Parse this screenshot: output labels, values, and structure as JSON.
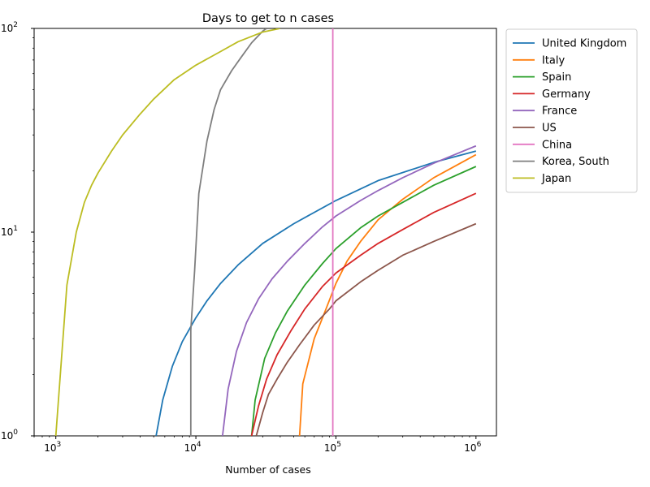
{
  "chart_data": {
    "type": "line",
    "title": "Days to get to n cases",
    "xlabel": "Number of cases",
    "ylabel": "",
    "xscale": "log",
    "yscale": "log",
    "xlim": [
      700,
      1400000
    ],
    "ylim": [
      1,
      100
    ],
    "x_ticks": [
      {
        "value": 1000,
        "base": "10",
        "exp": "3"
      },
      {
        "value": 10000,
        "base": "10",
        "exp": "4"
      },
      {
        "value": 100000,
        "base": "10",
        "exp": "5"
      },
      {
        "value": 1000000,
        "base": "10",
        "exp": "6"
      }
    ],
    "y_ticks": [
      {
        "value": 1,
        "base": "10",
        "exp": "0"
      },
      {
        "value": 10,
        "base": "10",
        "exp": "1"
      },
      {
        "value": 100,
        "base": "10",
        "exp": "2"
      }
    ],
    "grid": false,
    "legend_position": "outside-top-right",
    "series": [
      {
        "name": "United Kingdom",
        "color": "#1f77b4",
        "points": [
          [
            5200,
            1
          ],
          [
            5800,
            1.5
          ],
          [
            6800,
            2.2
          ],
          [
            8000,
            2.9
          ],
          [
            10000,
            3.8
          ],
          [
            12000,
            4.6
          ],
          [
            15000,
            5.6
          ],
          [
            20000,
            6.9
          ],
          [
            30000,
            8.8
          ],
          [
            50000,
            11.0
          ],
          [
            100000,
            14.3
          ],
          [
            200000,
            17.9
          ],
          [
            500000,
            22.0
          ],
          [
            1000000,
            25.0
          ]
        ]
      },
      {
        "name": "Italy",
        "color": "#ff7f0e",
        "points": [
          [
            55000,
            1
          ],
          [
            58000,
            1.8
          ],
          [
            70000,
            3.0
          ],
          [
            85000,
            4.2
          ],
          [
            100000,
            5.6
          ],
          [
            120000,
            7.2
          ],
          [
            150000,
            9.0
          ],
          [
            200000,
            11.5
          ],
          [
            300000,
            14.5
          ],
          [
            500000,
            18.5
          ],
          [
            1000000,
            24.0
          ]
        ]
      },
      {
        "name": "Spain",
        "color": "#2ca02c",
        "points": [
          [
            25000,
            1
          ],
          [
            26500,
            1.5
          ],
          [
            31000,
            2.4
          ],
          [
            37000,
            3.2
          ],
          [
            45000,
            4.1
          ],
          [
            60000,
            5.5
          ],
          [
            80000,
            7.0
          ],
          [
            100000,
            8.3
          ],
          [
            150000,
            10.5
          ],
          [
            200000,
            12.0
          ],
          [
            300000,
            14.0
          ],
          [
            500000,
            17.0
          ],
          [
            1000000,
            21.0
          ]
        ]
      },
      {
        "name": "Germany",
        "color": "#d62728",
        "points": [
          [
            25000,
            1
          ],
          [
            28000,
            1.4
          ],
          [
            32000,
            1.9
          ],
          [
            38000,
            2.5
          ],
          [
            48000,
            3.3
          ],
          [
            60000,
            4.2
          ],
          [
            80000,
            5.4
          ],
          [
            100000,
            6.3
          ],
          [
            150000,
            7.7
          ],
          [
            200000,
            8.8
          ],
          [
            300000,
            10.3
          ],
          [
            500000,
            12.5
          ],
          [
            1000000,
            15.5
          ]
        ]
      },
      {
        "name": "France",
        "color": "#9467bd",
        "points": [
          [
            15500,
            1
          ],
          [
            17000,
            1.7
          ],
          [
            19500,
            2.6
          ],
          [
            23000,
            3.6
          ],
          [
            28000,
            4.7
          ],
          [
            35000,
            5.9
          ],
          [
            45000,
            7.2
          ],
          [
            60000,
            8.8
          ],
          [
            80000,
            10.6
          ],
          [
            100000,
            12.0
          ],
          [
            150000,
            14.3
          ],
          [
            200000,
            16.0
          ],
          [
            300000,
            18.5
          ],
          [
            500000,
            21.8
          ],
          [
            1000000,
            26.5
          ]
        ]
      },
      {
        "name": "US",
        "color": "#8c564b",
        "points": [
          [
            27000,
            1
          ],
          [
            30000,
            1.3
          ],
          [
            33000,
            1.6
          ],
          [
            38000,
            1.9
          ],
          [
            45000,
            2.3
          ],
          [
            55000,
            2.8
          ],
          [
            70000,
            3.5
          ],
          [
            90000,
            4.2
          ],
          [
            100000,
            4.6
          ],
          [
            150000,
            5.7
          ],
          [
            200000,
            6.5
          ],
          [
            300000,
            7.7
          ],
          [
            500000,
            9.0
          ],
          [
            1000000,
            11.0
          ]
        ]
      },
      {
        "name": "China",
        "color": "#e377c2",
        "points": [
          [
            95000,
            1
          ],
          [
            95000,
            100
          ]
        ]
      },
      {
        "name": "Korea, South",
        "color": "#7f7f7f",
        "points": [
          [
            9200,
            1
          ],
          [
            9200,
            3.3
          ],
          [
            9800,
            6.5
          ],
          [
            10500,
            15.5
          ],
          [
            12000,
            28
          ],
          [
            13500,
            40
          ],
          [
            15000,
            50
          ],
          [
            18000,
            62
          ],
          [
            21000,
            72
          ],
          [
            25000,
            85
          ],
          [
            30000,
            97
          ],
          [
            32000,
            100
          ]
        ]
      },
      {
        "name": "Japan",
        "color": "#bcbd22",
        "points": [
          [
            1000,
            1
          ],
          [
            1200,
            5.5
          ],
          [
            1400,
            10
          ],
          [
            1600,
            14
          ],
          [
            1800,
            17
          ],
          [
            2000,
            19.5
          ],
          [
            2500,
            25
          ],
          [
            3000,
            30
          ],
          [
            4000,
            38
          ],
          [
            5000,
            45
          ],
          [
            7000,
            56
          ],
          [
            10000,
            66
          ],
          [
            15000,
            77
          ],
          [
            20000,
            86
          ],
          [
            30000,
            96
          ],
          [
            40000,
            100
          ]
        ]
      }
    ]
  }
}
